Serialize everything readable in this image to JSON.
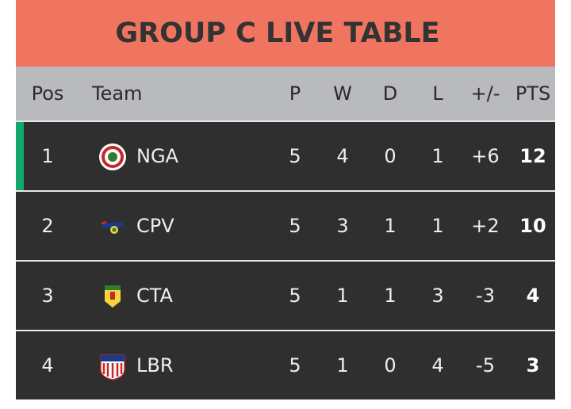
{
  "header": {
    "title": "GROUP C LIVE TABLE"
  },
  "table": {
    "columns": [
      "Pos",
      "Team",
      "P",
      "W",
      "D",
      "L",
      "+/-",
      "PTS"
    ],
    "rows": [
      [
        1,
        "NGA",
        5,
        4,
        0,
        1,
        "+6",
        12
      ],
      [
        2,
        "CPV",
        5,
        3,
        1,
        1,
        "+2",
        10
      ],
      [
        3,
        "CTA",
        5,
        1,
        1,
        3,
        "-3",
        4
      ],
      [
        4,
        "LBR",
        5,
        1,
        0,
        4,
        "-5",
        3
      ]
    ]
  }
}
